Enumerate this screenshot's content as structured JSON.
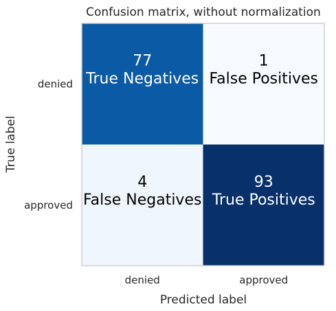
{
  "chart_data": {
    "type": "heatmap",
    "title": "Confusion matrix, without normalization",
    "xlabel": "Predicted label",
    "ylabel": "True label",
    "x_categories": [
      "denied",
      "approved"
    ],
    "y_categories": [
      "denied",
      "approved"
    ],
    "values": [
      [
        77,
        1
      ],
      [
        4,
        93
      ]
    ],
    "cell_labels": [
      [
        "True Negatives",
        "False Positives"
      ],
      [
        "False Negatives",
        "True Positives"
      ]
    ],
    "cell_colors": [
      [
        "#0b5aa6",
        "#f7fbff"
      ],
      [
        "#f0f6fd",
        "#08306b"
      ]
    ],
    "text_colors": [
      [
        "#ffffff",
        "#000000"
      ],
      [
        "#000000",
        "#ffffff"
      ]
    ],
    "colormap": "Blues",
    "grid": false
  }
}
